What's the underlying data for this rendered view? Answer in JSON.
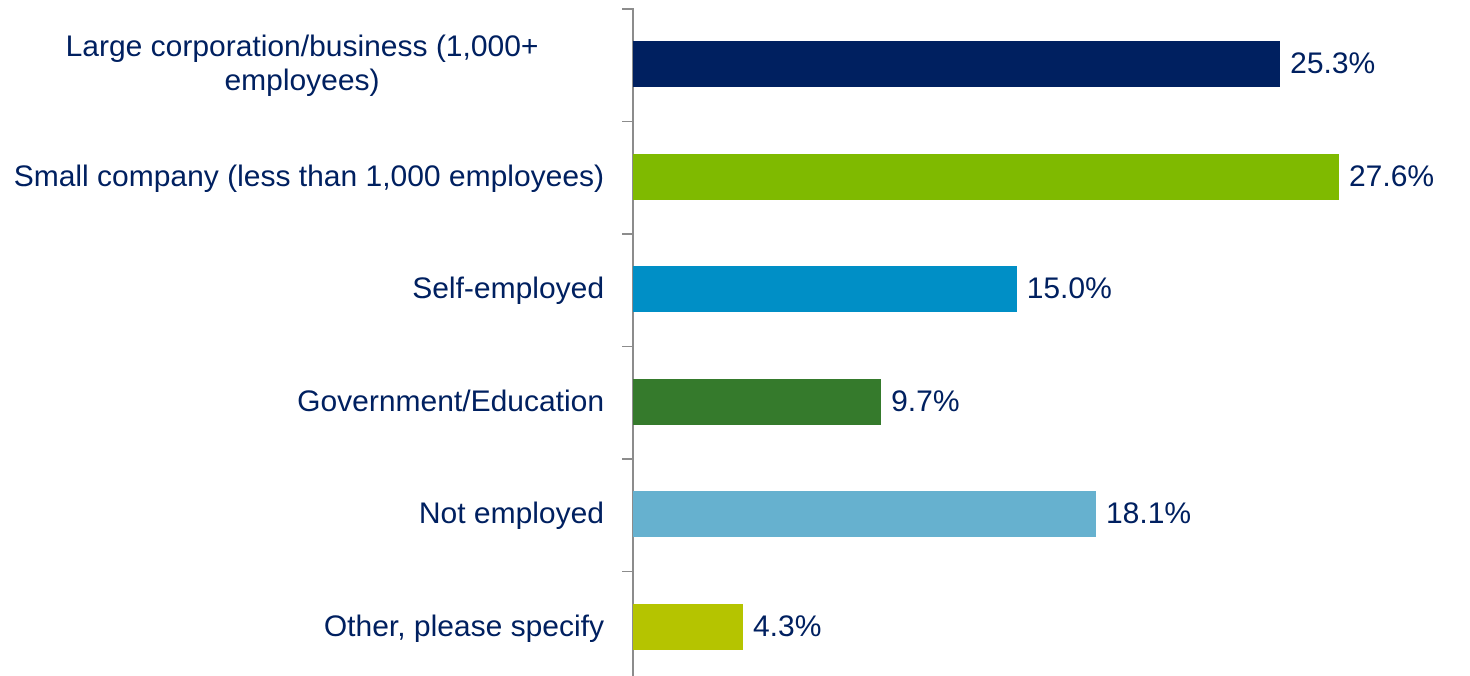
{
  "chart_data": {
    "type": "bar",
    "orientation": "horizontal",
    "categories": [
      "Large corporation/business (1,000+ employees)",
      "Small company (less than 1,000 employees)",
      "Self-employed",
      "Government/Education",
      "Not employed",
      "Other, please specify"
    ],
    "values": [
      25.3,
      27.6,
      15.0,
      9.7,
      18.1,
      4.3
    ],
    "value_labels": [
      "25.3%",
      "27.6%",
      "15.0%",
      "9.7%",
      "18.1%",
      "4.3%"
    ],
    "colors": [
      "#002060",
      "#7fba00",
      "#008fc6",
      "#357a2c",
      "#66b1cf",
      "#b5c400"
    ]
  }
}
